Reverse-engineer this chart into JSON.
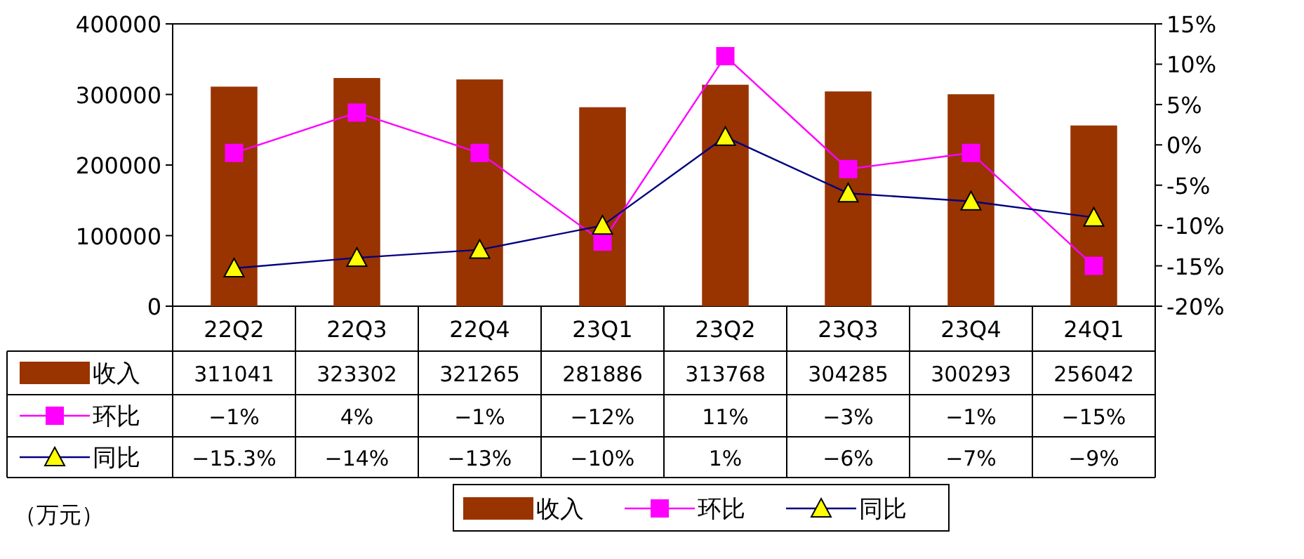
{
  "chart_data": {
    "type": "bar",
    "categories": [
      "22Q2",
      "22Q3",
      "22Q4",
      "23Q1",
      "23Q2",
      "23Q3",
      "23Q4",
      "24Q1"
    ],
    "series": [
      {
        "name": "收入",
        "color": "#993300",
        "values": [
          311041,
          323302,
          321265,
          281886,
          313768,
          304285,
          300293,
          256042
        ],
        "value_labels": [
          "311041",
          "323302",
          "321265",
          "281886",
          "313768",
          "304285",
          "300293",
          "256042"
        ]
      },
      {
        "name": "环比",
        "type": "line",
        "axis": "y2",
        "color": "#ff00ff",
        "marker": "square",
        "values": [
          -1,
          4,
          -1,
          -12,
          11,
          -3,
          -1,
          -15
        ],
        "value_labels": [
          "−1%",
          "4%",
          "−1%",
          "−12%",
          "11%",
          "−3%",
          "−1%",
          "−15%"
        ]
      },
      {
        "name": "同比",
        "type": "line",
        "axis": "y2",
        "color": "#000080",
        "marker": "triangle",
        "values": [
          -15.3,
          -14,
          -13,
          -10,
          1,
          -6,
          -7,
          -9
        ],
        "value_labels": [
          "−15.3%",
          "−14%",
          "−13%",
          "−10%",
          "1%",
          "−6%",
          "−7%",
          "−9%"
        ]
      }
    ],
    "ylim": [
      0,
      400000
    ],
    "yticks": [
      0,
      100000,
      200000,
      300000,
      400000
    ],
    "y2lim": [
      -20,
      15
    ],
    "y2ticks": [
      {
        "value": -20,
        "label": "-20%"
      },
      {
        "value": -15,
        "label": "-15%"
      },
      {
        "value": -10,
        "label": "-10%"
      },
      {
        "value": -5,
        "label": "-5%"
      },
      {
        "value": 0,
        "label": "0%"
      },
      {
        "value": 5,
        "label": "5%"
      },
      {
        "value": 10,
        "label": "10%"
      },
      {
        "value": 15,
        "label": "15%"
      }
    ],
    "grid": false,
    "legend": "bottom",
    "annotations": [
      "（万元）"
    ]
  }
}
